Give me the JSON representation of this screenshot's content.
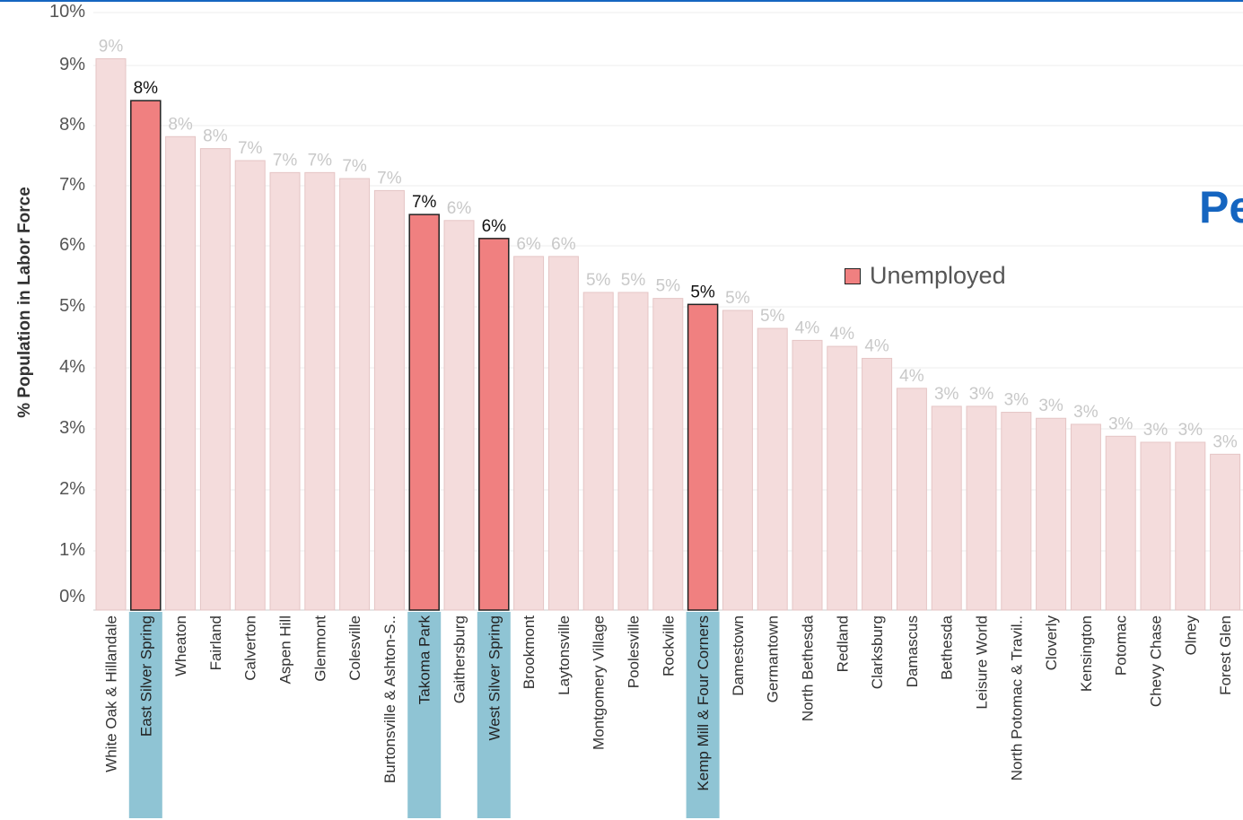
{
  "chart_data": {
    "type": "bar",
    "title": "Pe",
    "ylabel": "% Population in Labor Force",
    "ylim": [
      0,
      10
    ],
    "ytick_labels": [
      "0%",
      "1%",
      "2%",
      "3%",
      "4%",
      "5%",
      "6%",
      "7%",
      "8%",
      "9%",
      "10%"
    ],
    "legend": {
      "label": "Unemployed",
      "placement": "right-middle",
      "color": "#f08080"
    },
    "colors": {
      "highlight_bar": "#f08080",
      "other_bar": "#f4dcdc",
      "highlight_label_bg": "#8fc4d4",
      "title": "#1565c0"
    },
    "categories": [
      "White Oak & Hillandale",
      "East Silver Spring",
      "Wheaton",
      "Fairland",
      "Calverton",
      "Aspen Hill",
      "Glenmont",
      "Colesville",
      "Burtonsville & Ashton-S..",
      "Takoma Park",
      "Gaithersburg",
      "West Silver Spring",
      "Brookmont",
      "Laytonsville",
      "Montgomery Village",
      "Poolesville",
      "Rockville",
      "Kemp Mill & Four Corners",
      "Damestown",
      "Germantown",
      "North Bethesda",
      "Redland",
      "Clarksburg",
      "Damascus",
      "Bethesda",
      "Leisure World",
      "North Potomac & Travil..",
      "Cloverly",
      "Kensington",
      "Potomac",
      "Chevy Chase",
      "Olney",
      "Forest Glen"
    ],
    "values": [
      9.2,
      8.5,
      7.9,
      7.7,
      7.5,
      7.3,
      7.3,
      7.2,
      7.0,
      6.6,
      6.5,
      6.2,
      5.9,
      5.9,
      5.3,
      5.3,
      5.2,
      5.1,
      5.0,
      4.7,
      4.5,
      4.4,
      4.2,
      3.7,
      3.4,
      3.4,
      3.3,
      3.2,
      3.1,
      2.9,
      2.8,
      2.8,
      2.6
    ],
    "value_labels": [
      "9%",
      "8%",
      "8%",
      "8%",
      "7%",
      "7%",
      "7%",
      "7%",
      "7%",
      "7%",
      "6%",
      "6%",
      "6%",
      "6%",
      "5%",
      "5%",
      "5%",
      "5%",
      "5%",
      "5%",
      "4%",
      "4%",
      "4%",
      "4%",
      "3%",
      "3%",
      "3%",
      "3%",
      "3%",
      "3%",
      "3%",
      "3%",
      "3%"
    ],
    "highlighted": [
      "East Silver Spring",
      "Takoma Park",
      "West Silver Spring",
      "Kemp Mill & Four Corners"
    ],
    "grid": true
  }
}
